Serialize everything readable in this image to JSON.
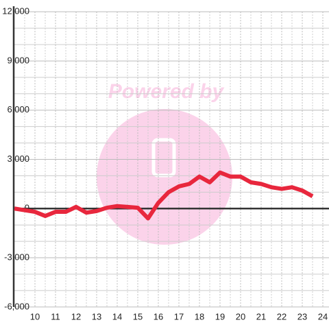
{
  "chart_data": {
    "type": "line",
    "watermark": "Powered by",
    "x": [
      9,
      9.5,
      10,
      10.5,
      11,
      11.5,
      12,
      12.5,
      13,
      13.5,
      14,
      14.5,
      15,
      15.5,
      16,
      16.5,
      17,
      17.5,
      18,
      18.5,
      19,
      19.5,
      20,
      20.5,
      21,
      21.5,
      22,
      22.5,
      23,
      23.5
    ],
    "series": [
      {
        "color": "#e8273d",
        "values": [
          0,
          -100,
          -200,
          -450,
          -200,
          -200,
          100,
          -250,
          -150,
          50,
          150,
          100,
          50,
          -600,
          350,
          1000,
          1350,
          1500,
          1950,
          1600,
          2200,
          1950,
          1950,
          1600,
          1500,
          1300,
          1200,
          1300,
          1100,
          750
        ]
      }
    ],
    "xlim": [
      9,
      24.3
    ],
    "ylim": [
      -6300,
      12300
    ],
    "xticks": [
      10,
      11,
      12,
      13,
      14,
      15,
      16,
      17,
      18,
      19,
      20,
      21,
      22,
      23,
      24
    ],
    "yticks": [
      {
        "value": 12000,
        "label": "12,000"
      },
      {
        "value": 9000,
        "label": "9,000"
      },
      {
        "value": 6000,
        "label": "6,000"
      },
      {
        "value": 3000,
        "label": "3,000"
      },
      0,
      {
        "value": -3000,
        "label": "-3,000"
      },
      {
        "value": -6000,
        "label": "-6,000"
      }
    ],
    "ygrid": [
      -5000,
      -4000,
      -2000,
      -1000,
      1000,
      2000,
      4000,
      5000,
      7000,
      8000,
      10000,
      11000
    ],
    "xgrid": [
      9.5,
      10.5,
      11.5,
      12.5,
      13.5,
      14.5,
      15.5,
      16.5,
      17.5,
      18.5,
      19.5,
      20.5,
      21.5,
      22.5,
      23.5
    ],
    "grid": true
  }
}
